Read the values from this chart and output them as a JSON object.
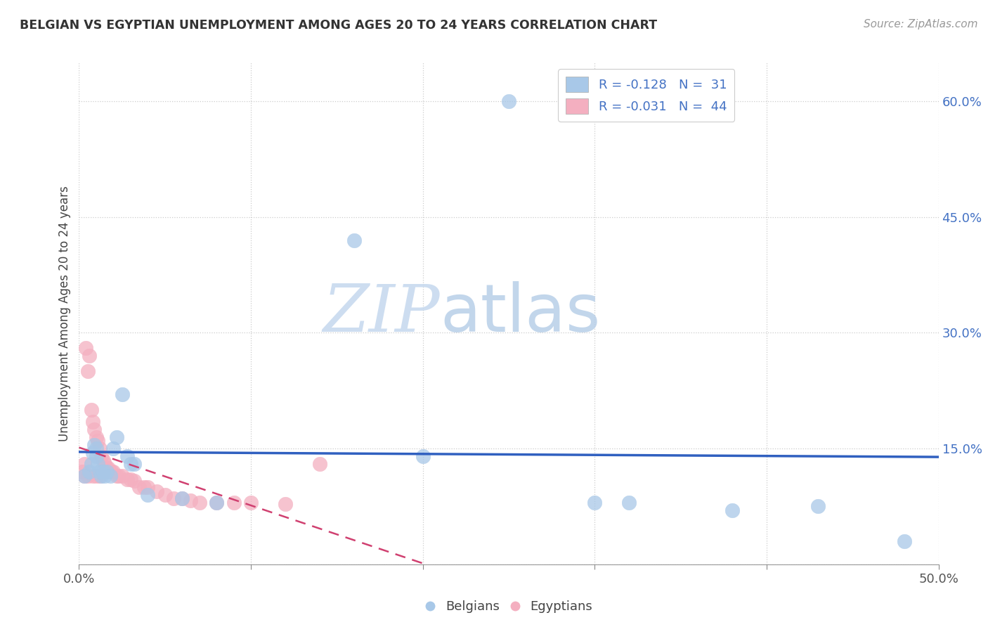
{
  "title": "BELGIAN VS EGYPTIAN UNEMPLOYMENT AMONG AGES 20 TO 24 YEARS CORRELATION CHART",
  "source_text": "Source: ZipAtlas.com",
  "ylabel": "Unemployment Among Ages 20 to 24 years",
  "xlim": [
    0.0,
    0.5
  ],
  "ylim": [
    0.0,
    0.65
  ],
  "xticks": [
    0.0,
    0.1,
    0.2,
    0.3,
    0.4,
    0.5
  ],
  "yticks": [
    0.0,
    0.15,
    0.3,
    0.45,
    0.6
  ],
  "ytick_labels": [
    "",
    "15.0%",
    "30.0%",
    "45.0%",
    "60.0%"
  ],
  "xtick_labels": [
    "0.0%",
    "",
    "",
    "",
    "",
    "50.0%"
  ],
  "belgian_color": "#a8c8e8",
  "egyptian_color": "#f4afc0",
  "belgian_line_color": "#3060c0",
  "egyptian_line_color": "#d04070",
  "legend_R_belgian": "R = -0.128",
  "legend_N_belgian": "N =  31",
  "legend_R_egyptian": "R = -0.031",
  "legend_N_egyptian": "N =  44",
  "watermark_zip": "ZIP",
  "watermark_atlas": "atlas",
  "belgian_x": [
    0.003,
    0.006,
    0.007,
    0.008,
    0.009,
    0.01,
    0.01,
    0.011,
    0.012,
    0.013,
    0.014,
    0.015,
    0.016,
    0.018,
    0.02,
    0.022,
    0.025,
    0.028,
    0.03,
    0.032,
    0.04,
    0.06,
    0.08,
    0.16,
    0.2,
    0.25,
    0.3,
    0.32,
    0.38,
    0.43,
    0.48
  ],
  "belgian_y": [
    0.115,
    0.12,
    0.13,
    0.145,
    0.155,
    0.15,
    0.14,
    0.13,
    0.12,
    0.115,
    0.12,
    0.115,
    0.12,
    0.115,
    0.15,
    0.165,
    0.22,
    0.14,
    0.13,
    0.13,
    0.09,
    0.085,
    0.08,
    0.42,
    0.14,
    0.6,
    0.08,
    0.08,
    0.07,
    0.075,
    0.03
  ],
  "egyptian_x": [
    0.002,
    0.003,
    0.003,
    0.004,
    0.005,
    0.005,
    0.006,
    0.007,
    0.008,
    0.008,
    0.009,
    0.01,
    0.01,
    0.011,
    0.012,
    0.012,
    0.013,
    0.014,
    0.015,
    0.016,
    0.017,
    0.018,
    0.019,
    0.02,
    0.022,
    0.023,
    0.025,
    0.028,
    0.03,
    0.032,
    0.035,
    0.038,
    0.04,
    0.045,
    0.05,
    0.055,
    0.06,
    0.065,
    0.07,
    0.08,
    0.09,
    0.1,
    0.12,
    0.14
  ],
  "egyptian_y": [
    0.12,
    0.13,
    0.115,
    0.28,
    0.25,
    0.115,
    0.27,
    0.2,
    0.185,
    0.115,
    0.175,
    0.165,
    0.115,
    0.16,
    0.15,
    0.115,
    0.14,
    0.135,
    0.13,
    0.125,
    0.125,
    0.12,
    0.12,
    0.12,
    0.115,
    0.115,
    0.115,
    0.11,
    0.11,
    0.108,
    0.1,
    0.1,
    0.1,
    0.095,
    0.09,
    0.085,
    0.085,
    0.083,
    0.08,
    0.08,
    0.08,
    0.08,
    0.078,
    0.13
  ]
}
